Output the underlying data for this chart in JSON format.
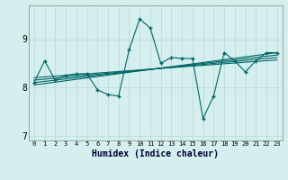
{
  "title": "",
  "xlabel": "Humidex (Indice chaleur)",
  "bg_color": "#d5eeee",
  "line_color": "#006666",
  "grid_color": "#b8d8d8",
  "xlim": [
    -0.5,
    23.5
  ],
  "ylim": [
    6.9,
    9.7
  ],
  "yticks": [
    7,
    8,
    9
  ],
  "xticks": [
    0,
    1,
    2,
    3,
    4,
    5,
    6,
    7,
    8,
    9,
    10,
    11,
    12,
    13,
    14,
    15,
    16,
    17,
    18,
    19,
    20,
    21,
    22,
    23
  ],
  "main_x": [
    0,
    1,
    2,
    3,
    4,
    5,
    6,
    7,
    8,
    9,
    10,
    11,
    12,
    13,
    14,
    15,
    16,
    17,
    18,
    19,
    20,
    21,
    22,
    23
  ],
  "main_y": [
    8.1,
    8.55,
    8.15,
    8.25,
    8.28,
    8.28,
    7.95,
    7.85,
    7.82,
    8.78,
    9.42,
    9.23,
    8.5,
    8.62,
    8.6,
    8.6,
    7.35,
    7.82,
    8.72,
    8.55,
    8.32,
    8.55,
    8.72,
    8.72
  ],
  "trend_lines": [
    {
      "x": [
        0,
        23
      ],
      "y": [
        8.05,
        8.72
      ]
    },
    {
      "x": [
        0,
        23
      ],
      "y": [
        8.1,
        8.67
      ]
    },
    {
      "x": [
        0,
        23
      ],
      "y": [
        8.15,
        8.62
      ]
    },
    {
      "x": [
        0,
        23
      ],
      "y": [
        8.2,
        8.57
      ]
    }
  ]
}
